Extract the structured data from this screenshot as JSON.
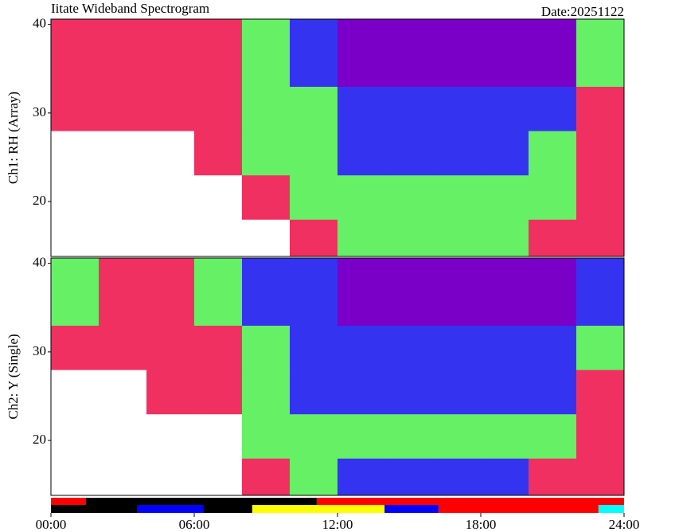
{
  "chart_data": [
    {
      "type": "heatmap",
      "title": "Iitate Wideband Spectrogram",
      "date": "Date:20251122",
      "ylabel": "Ch1: RH (Array)",
      "xlim": [
        0,
        24
      ],
      "ylim": [
        13.8,
        40.6
      ],
      "yticks": [
        20,
        30,
        40
      ],
      "xbins": [
        0,
        2,
        4,
        6,
        8,
        10,
        12,
        14,
        16,
        18,
        20,
        22,
        24
      ],
      "ybins": [
        13.8,
        18,
        23,
        28,
        33,
        40.6
      ],
      "colormap": [
        "#7a00c8",
        "#3434f0",
        "#66f066",
        "#f03060",
        "#ffffff"
      ],
      "values": [
        [
          4,
          4,
          4,
          4,
          4,
          3,
          2,
          2,
          2,
          2,
          3,
          3
        ],
        [
          4,
          4,
          4,
          4,
          3,
          2,
          2,
          2,
          2,
          2,
          2,
          3
        ],
        [
          4,
          4,
          4,
          3,
          2,
          2,
          1,
          1,
          1,
          1,
          2,
          3
        ],
        [
          3,
          3,
          3,
          3,
          2,
          2,
          1,
          1,
          1,
          1,
          1,
          3
        ],
        [
          3,
          3,
          3,
          3,
          2,
          1,
          0,
          0,
          0,
          0,
          0,
          2
        ]
      ]
    },
    {
      "type": "heatmap",
      "ylabel": "Ch2: Y (Single)",
      "xlim": [
        0,
        24
      ],
      "ylim": [
        13.8,
        40.6
      ],
      "yticks": [
        20,
        30,
        40
      ],
      "xticks": [
        {
          "value": 0,
          "label": "00:00"
        },
        {
          "value": 6,
          "label": "06:00"
        },
        {
          "value": 12,
          "label": "12:00"
        },
        {
          "value": 18,
          "label": "18:00"
        },
        {
          "value": 24,
          "label": "24:00"
        }
      ],
      "xbins": [
        0,
        2,
        4,
        6,
        8,
        10,
        12,
        14,
        16,
        18,
        20,
        22,
        24
      ],
      "ybins": [
        13.8,
        18,
        23,
        28,
        33,
        40.6
      ],
      "colormap": [
        "#7a00c8",
        "#3434f0",
        "#66f066",
        "#f03060",
        "#ffffff"
      ],
      "values": [
        [
          4,
          4,
          4,
          4,
          3,
          2,
          1,
          1,
          1,
          1,
          3,
          3
        ],
        [
          4,
          4,
          4,
          4,
          2,
          2,
          2,
          2,
          2,
          2,
          2,
          3
        ],
        [
          4,
          4,
          3,
          3,
          2,
          1,
          1,
          1,
          1,
          1,
          1,
          3
        ],
        [
          3,
          3,
          3,
          3,
          2,
          1,
          1,
          1,
          1,
          1,
          1,
          2
        ],
        [
          2,
          3,
          3,
          2,
          1,
          1,
          0,
          0,
          0,
          0,
          0,
          1
        ]
      ]
    },
    {
      "type": "status",
      "xlim": [
        0,
        24
      ],
      "rows": [
        [
          {
            "start": 0,
            "end": 1.47,
            "color": "#ff0000"
          },
          {
            "start": 1.47,
            "end": 11.13,
            "color": "#000000"
          },
          {
            "start": 11.13,
            "end": 24,
            "color": "#ff0000"
          }
        ],
        [
          {
            "start": 0,
            "end": 3.6,
            "color": "#000000"
          },
          {
            "start": 3.6,
            "end": 6.37,
            "color": "#0000ff"
          },
          {
            "start": 6.37,
            "end": 8.43,
            "color": "#000000"
          },
          {
            "start": 8.43,
            "end": 13.97,
            "color": "#ffff00"
          },
          {
            "start": 13.97,
            "end": 16.23,
            "color": "#0000ff"
          },
          {
            "start": 16.23,
            "end": 22.93,
            "color": "#ff0000"
          },
          {
            "start": 22.93,
            "end": 24,
            "color": "#00ffff"
          }
        ]
      ]
    }
  ]
}
